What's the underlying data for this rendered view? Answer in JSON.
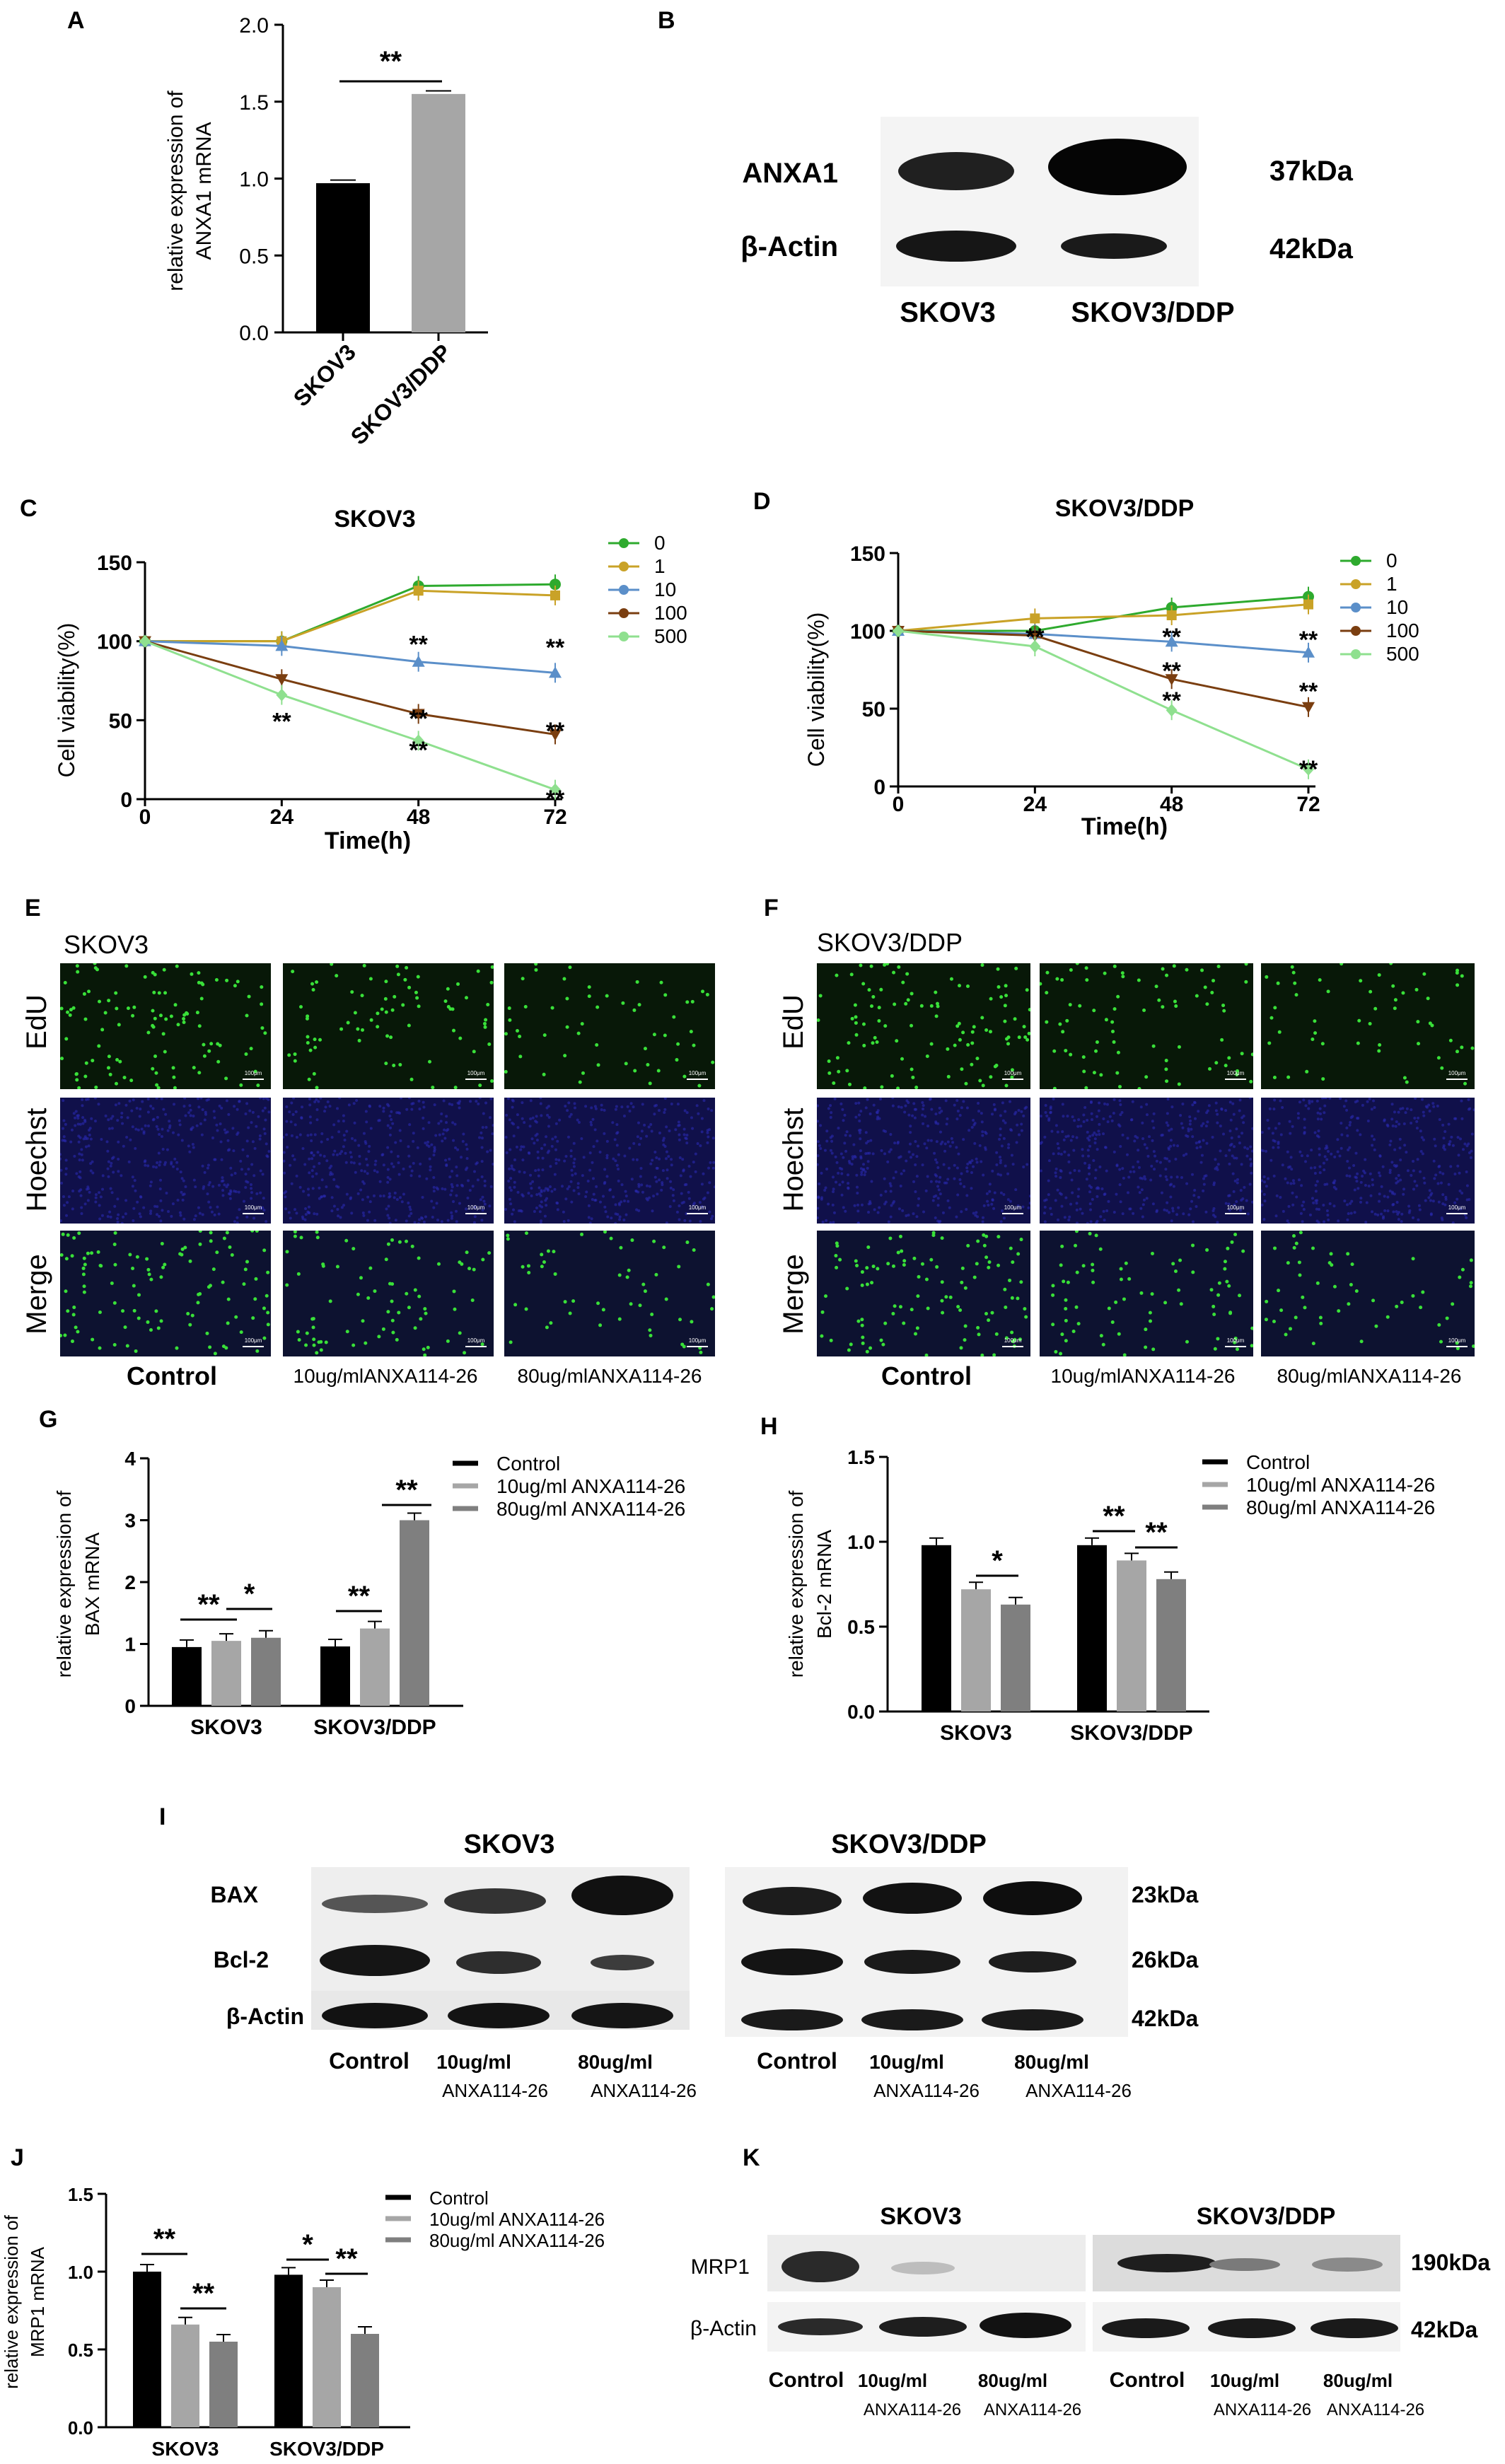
{
  "colors": {
    "black": "#000000",
    "grey_light": "#a6a6a6",
    "grey_dark": "#7f7f7f",
    "c0": "#2eaa2e",
    "c1": "#c9a227",
    "c10": "#5b8fc9",
    "c100": "#7a3e10",
    "c500": "#8fe08f",
    "edu": "#39e039",
    "hoechst": "#1a1a8c"
  },
  "panels": {
    "A": {
      "letter": "A",
      "ylabel_1": "relative expression of",
      "ylabel_2": "ANXA1 mRNA",
      "chart_data": {
        "type": "bar",
        "categories": [
          "SKOV3",
          "SKOV3/DDP"
        ],
        "values": [
          0.97,
          1.55
        ],
        "errors": [
          0.02,
          0.02
        ],
        "ylim": [
          0,
          2.0
        ],
        "yticks": [
          "0.0",
          "0.5",
          "1.0",
          "1.5",
          "2.0"
        ]
      },
      "sig": "**"
    },
    "B": {
      "letter": "B",
      "rows": [
        "ANXA1",
        "β-Actin"
      ],
      "kda": [
        "37kDa",
        "42kDa"
      ],
      "cols": [
        "SKOV3",
        "SKOV3/DDP"
      ]
    },
    "C": {
      "letter": "C",
      "title": "SKOV3",
      "ylabel": "Cell viability(%)",
      "xlabel": "Time(h)",
      "chart_data": {
        "type": "line",
        "x": [
          0,
          24,
          48,
          72
        ],
        "xticks": [
          "0",
          "24",
          "48",
          "72"
        ],
        "yticks": [
          "0",
          "50",
          "100",
          "150"
        ],
        "ylim": [
          0,
          150
        ],
        "series": [
          {
            "name": "0",
            "values": [
              100,
              100,
              135,
              136
            ]
          },
          {
            "name": "1",
            "values": [
              100,
              100,
              132,
              129
            ]
          },
          {
            "name": "10",
            "values": [
              100,
              97,
              87,
              80
            ]
          },
          {
            "name": "100",
            "values": [
              100,
              76,
              54,
              41
            ]
          },
          {
            "name": "500",
            "values": [
              100,
              66,
              37,
              6
            ]
          }
        ]
      },
      "stars": "**"
    },
    "D": {
      "letter": "D",
      "title": "SKOV3/DDP",
      "ylabel": "Cell viability(%)",
      "xlabel": "Time(h)",
      "chart_data": {
        "type": "line",
        "x": [
          0,
          24,
          48,
          72
        ],
        "xticks": [
          "0",
          "24",
          "48",
          "72"
        ],
        "yticks": [
          "0",
          "50",
          "100",
          "150"
        ],
        "ylim": [
          0,
          150
        ],
        "series": [
          {
            "name": "0",
            "values": [
              100,
              100,
              115,
              122
            ]
          },
          {
            "name": "1",
            "values": [
              100,
              108,
              110,
              117
            ]
          },
          {
            "name": "10",
            "values": [
              100,
              98,
              93,
              86
            ]
          },
          {
            "name": "100",
            "values": [
              100,
              97,
              69,
              51
            ]
          },
          {
            "name": "500",
            "values": [
              100,
              90,
              49,
              11
            ]
          }
        ]
      },
      "stars": "**"
    },
    "E": {
      "letter": "E",
      "title": "SKOV3",
      "rows": [
        "EdU",
        "Hoechst",
        "Merge"
      ],
      "cols": [
        "Control",
        "10ug/mlANXA114-26",
        "80ug/mlANXA114-26"
      ],
      "scale": "100μm"
    },
    "F": {
      "letter": "F",
      "title": "SKOV3/DDP",
      "rows": [
        "EdU",
        "Hoechst",
        "Merge"
      ],
      "cols": [
        "Control",
        "10ug/mlANXA114-26",
        "80ug/mlANXA114-26"
      ],
      "scale": "100μm"
    },
    "G": {
      "letter": "G",
      "ylabel_1": "relative expression of",
      "ylabel_2": "BAX mRNA",
      "legend": [
        "Control",
        "10ug/ml ANXA114-26",
        "80ug/ml ANXA114-26"
      ],
      "chart_data": {
        "type": "bar",
        "categories": [
          "SKOV3",
          "SKOV3/DDP"
        ],
        "ylim": [
          0,
          4
        ],
        "yticks": [
          "0",
          "1",
          "2",
          "3",
          "4"
        ],
        "series": [
          {
            "values": [
              0.95,
              0.96
            ]
          },
          {
            "values": [
              1.05,
              1.25
            ]
          },
          {
            "values": [
              1.1,
              3.0
            ]
          }
        ]
      },
      "sig": [
        "**",
        "*",
        "**",
        "**"
      ]
    },
    "H": {
      "letter": "H",
      "ylabel_1": "relative expression of",
      "ylabel_2": "Bcl-2 mRNA",
      "legend": [
        "Control",
        "10ug/ml ANXA114-26",
        "80ug/ml ANXA114-26"
      ],
      "chart_data": {
        "type": "bar",
        "categories": [
          "SKOV3",
          "SKOV3/DDP"
        ],
        "ylim": [
          0,
          1.5
        ],
        "yticks": [
          "0.0",
          "0.5",
          "1.0",
          "1.5"
        ],
        "series": [
          {
            "values": [
              0.98,
              0.98
            ]
          },
          {
            "values": [
              0.72,
              0.89
            ]
          },
          {
            "values": [
              0.63,
              0.78
            ]
          }
        ]
      },
      "sig": [
        "*",
        "**",
        "**"
      ]
    },
    "I": {
      "letter": "I",
      "groups": [
        "SKOV3",
        "SKOV3/DDP"
      ],
      "rows": [
        "BAX",
        "Bcl-2",
        "β-Actin"
      ],
      "kda": [
        "23kDa",
        "26kDa",
        "42kDa"
      ],
      "cols": [
        "Control",
        "10ug/ml",
        "80ug/ml"
      ],
      "cols2": [
        "",
        "ANXA114-26",
        "ANXA114-26"
      ]
    },
    "J": {
      "letter": "J",
      "ylabel_1": "relative expression of",
      "ylabel_2": "MRP1 mRNA",
      "legend": [
        "Control",
        "10ug/ml ANXA114-26",
        "80ug/ml ANXA114-26"
      ],
      "chart_data": {
        "type": "bar",
        "categories": [
          "SKOV3",
          "SKOV3/DDP"
        ],
        "ylim": [
          0,
          1.5
        ],
        "yticks": [
          "0.0",
          "0.5",
          "1.0",
          "1.5"
        ],
        "series": [
          {
            "values": [
              1.0,
              0.98
            ]
          },
          {
            "values": [
              0.66,
              0.9
            ]
          },
          {
            "values": [
              0.55,
              0.6
            ]
          }
        ]
      },
      "sig": [
        "**",
        "**",
        "*",
        "**"
      ]
    },
    "K": {
      "letter": "K",
      "groups": [
        "SKOV3",
        "SKOV3/DDP"
      ],
      "rows": [
        "MRP1",
        "β-Actin"
      ],
      "kda": [
        "190kDa",
        "42kDa"
      ],
      "cols": [
        "Control",
        "10ug/ml",
        "80ug/ml"
      ],
      "cols2": [
        "",
        "ANXA114-26",
        "ANXA114-26"
      ]
    }
  }
}
